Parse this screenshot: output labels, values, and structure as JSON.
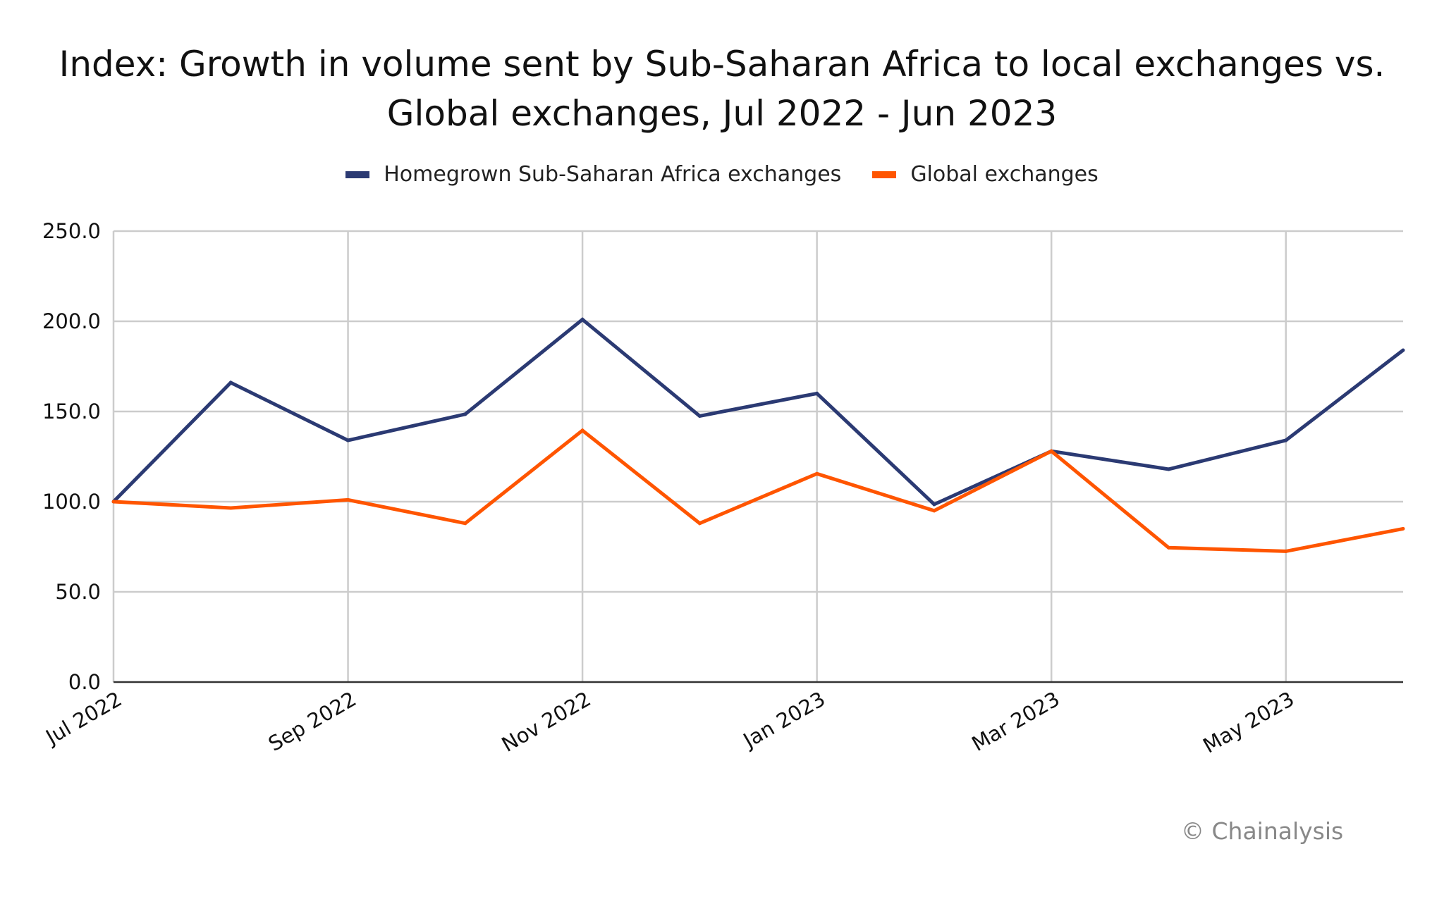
{
  "chart_data": {
    "type": "line",
    "title_lines": [
      "Index: Growth in volume sent by Sub-Saharan Africa to local exchanges vs.",
      "Global exchanges, Jul 2022 - Jun 2023"
    ],
    "xlabel": "",
    "ylabel": "",
    "categories": [
      "Jul 2022",
      "Aug 2022",
      "Sep 2022",
      "Oct 2022",
      "Nov 2022",
      "Dec 2022",
      "Jan 2023",
      "Feb 2023",
      "Mar 2023",
      "Apr 2023",
      "May 2023",
      "Jun 2023"
    ],
    "x_tick_labels": [
      "Jul 2022",
      "Sep 2022",
      "Nov 2022",
      "Jan 2023",
      "Mar 2023",
      "May 2023"
    ],
    "y_ticks": [
      "0.0",
      "50.0",
      "100.0",
      "150.0",
      "200.0",
      "250.0"
    ],
    "ylim": [
      0,
      250
    ],
    "grid": true,
    "legend_position": "top",
    "series": [
      {
        "name": "Homegrown Sub-Saharan Africa exchanges",
        "color": "#2b3a73",
        "values": [
          100,
          166,
          134,
          148.5,
          201,
          147.5,
          160,
          98.5,
          128,
          118,
          134,
          184
        ]
      },
      {
        "name": "Global exchanges",
        "color": "#ff5500",
        "values": [
          100,
          96.5,
          101,
          88,
          139.5,
          88,
          115.5,
          95,
          128,
          74.5,
          72.5,
          85
        ]
      }
    ]
  },
  "watermark": "© Chainalysis"
}
